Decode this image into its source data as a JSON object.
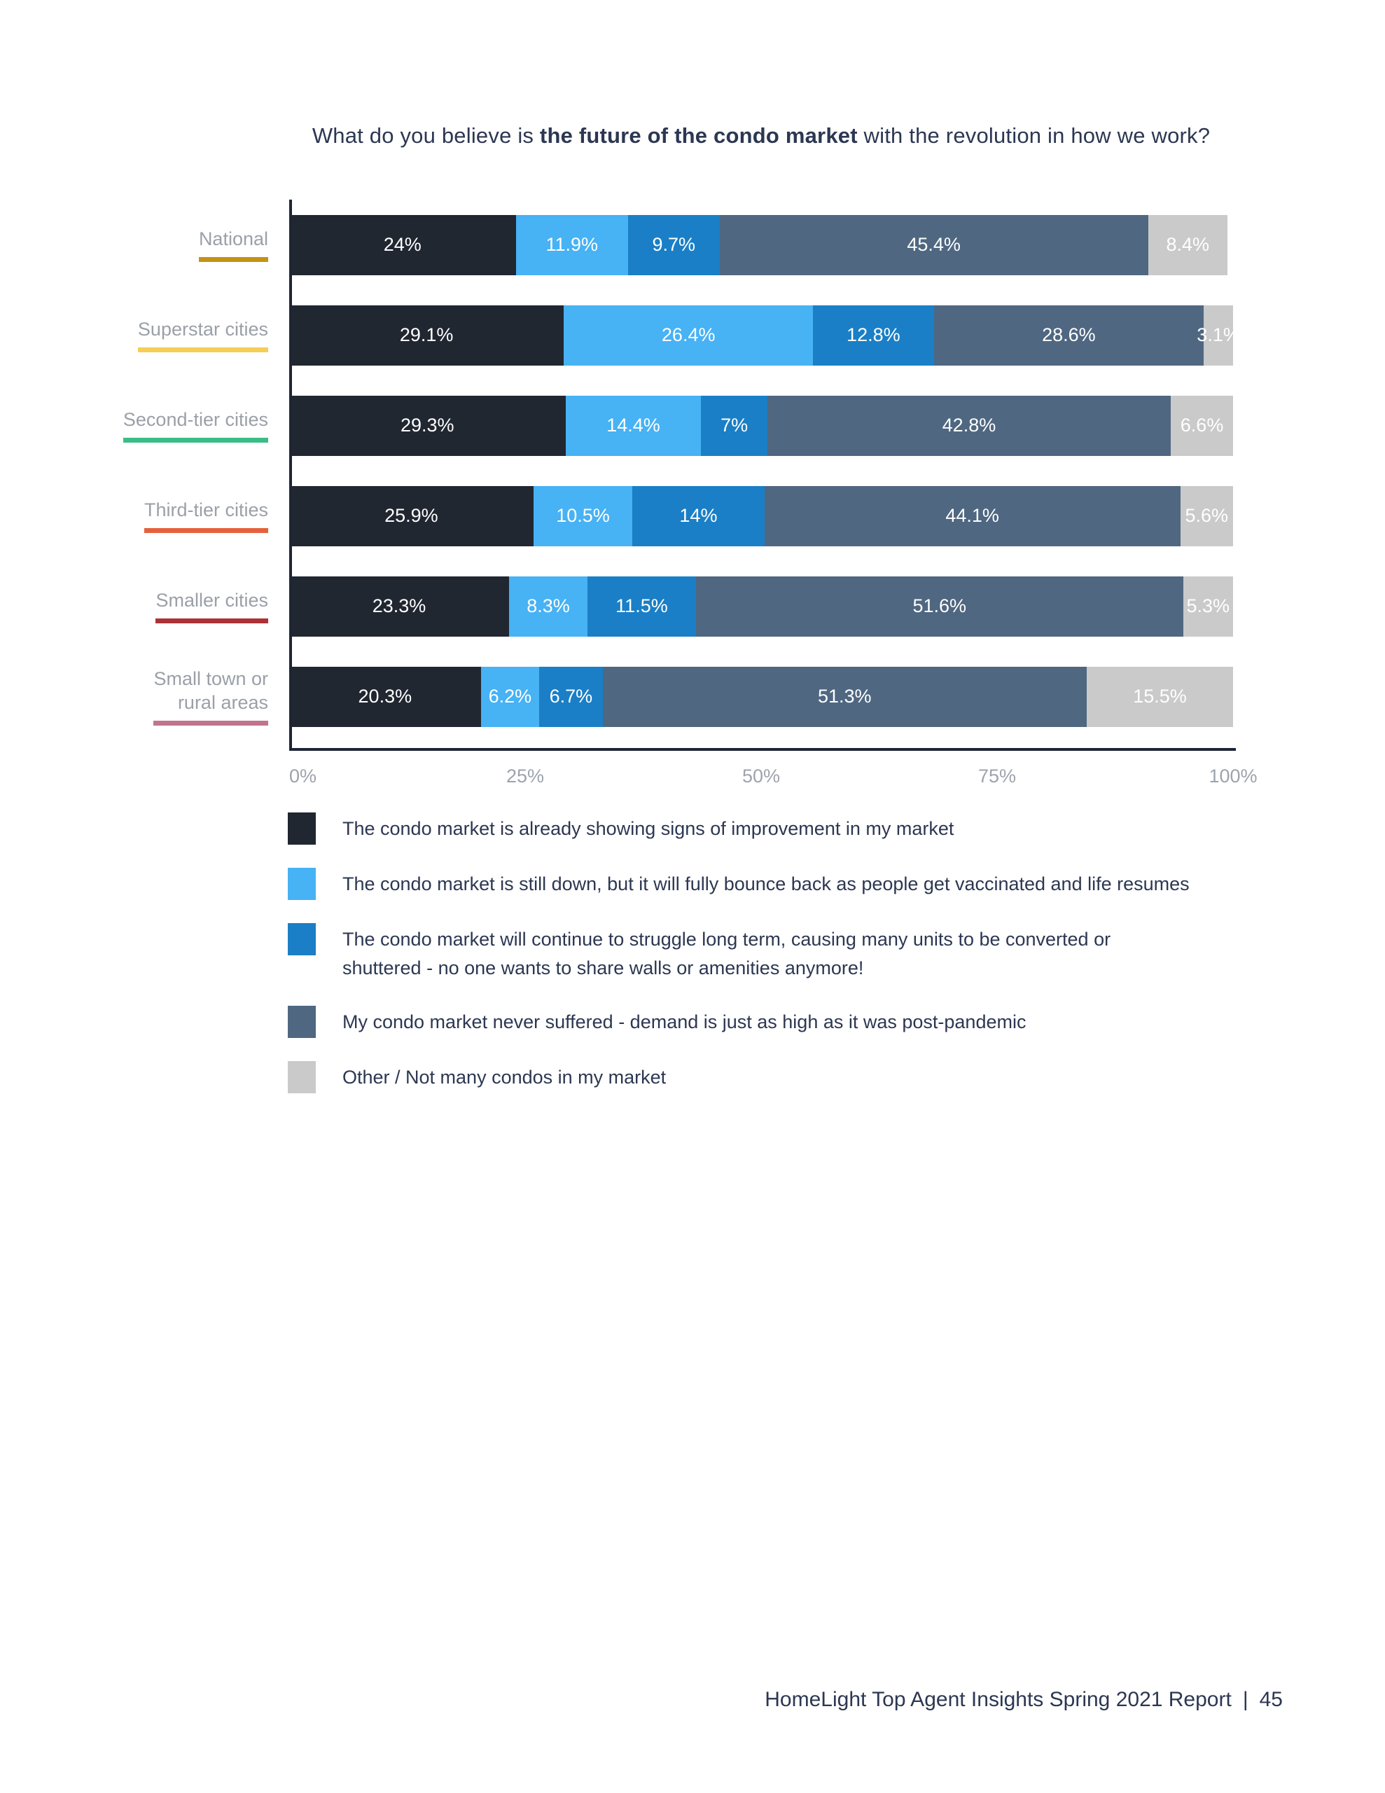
{
  "page": {
    "title_prefix": "What do you believe is ",
    "title_bold": "the future of the condo market",
    "title_suffix": " with the revolution in how we work?",
    "footer": "HomeLight Top Agent Insights Spring 2021 Report",
    "footer_separator": "|",
    "page_number": "45"
  },
  "chart_data": {
    "type": "bar",
    "orientation": "horizontal",
    "stacked": true,
    "value_unit": "%",
    "xlim": [
      0,
      100
    ],
    "x_ticks": [
      {
        "label": "0%",
        "pos": 0
      },
      {
        "label": "25%",
        "pos": 25
      },
      {
        "label": "50%",
        "pos": 50
      },
      {
        "label": "75%",
        "pos": 75
      },
      {
        "label": "100%",
        "pos": 100
      }
    ],
    "categories": [
      {
        "label": "National",
        "underline_color": "#c69214"
      },
      {
        "label": "Superstar cities",
        "underline_color": "#f5ce55"
      },
      {
        "label": "Second-tier cities",
        "underline_color": "#3cbd87"
      },
      {
        "label": "Third-tier cities",
        "underline_color": "#e5613d"
      },
      {
        "label": "Smaller cities",
        "underline_color": "#ac3237"
      },
      {
        "label": "Small town or\nrural areas",
        "underline_color": "#c2738f"
      }
    ],
    "series": [
      {
        "name": "The condo market is already showing signs of improvement in my market",
        "color": "#212731",
        "values": [
          24,
          29.1,
          29.3,
          25.9,
          23.3,
          20.3
        ]
      },
      {
        "name": "The condo market is still down, but it will fully bounce back as people get vaccinated and life resumes",
        "color": "#47b2f4",
        "values": [
          11.9,
          26.4,
          14.4,
          10.5,
          8.3,
          6.2
        ]
      },
      {
        "name": "The condo market will continue to struggle long term, causing many units to be converted or shuttered - no one wants to share walls or amenities anymore!",
        "color": "#1a7fc6",
        "values": [
          9.7,
          12.8,
          7,
          14,
          11.5,
          6.7
        ]
      },
      {
        "name": "My condo market never suffered - demand is just as high as it was post-pandemic",
        "color": "#4f6781",
        "values": [
          45.4,
          28.6,
          42.8,
          44.1,
          51.6,
          51.3
        ]
      },
      {
        "name": "Other / Not many condos in my market",
        "color": "#cacaca",
        "values": [
          8.4,
          3.1,
          6.6,
          5.6,
          5.3,
          15.5
        ]
      }
    ],
    "legend_position": "bottom",
    "legend_items": [
      {
        "lines": [
          "The condo market is already showing signs of improvement in my market"
        ]
      },
      {
        "lines": [
          "The condo market is still down, but it will fully bounce back as people get vaccinated and life resumes"
        ]
      },
      {
        "lines": [
          "The condo market will continue to struggle long term, causing many units to be converted or",
          "shuttered - no one wants to share walls or amenities anymore!"
        ]
      },
      {
        "lines": [
          "My condo market never suffered - demand is just as high as it was post-pandemic"
        ]
      },
      {
        "lines": [
          "Other / Not many condos in my market"
        ]
      }
    ]
  }
}
